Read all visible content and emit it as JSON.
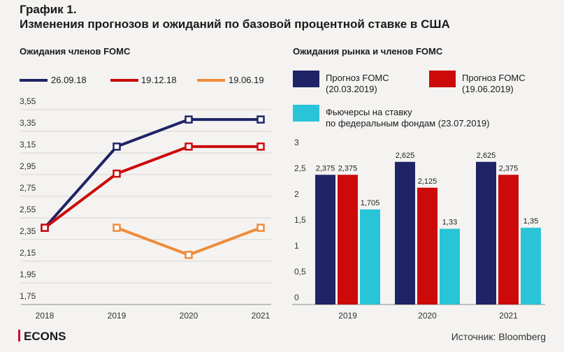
{
  "header": {
    "line1": "График 1.",
    "line2": "Изменения прогнозов и ожиданий по базовой процентной ставке в США"
  },
  "footer": {
    "brand": "ECONS",
    "source": "Источник: Bloomberg"
  },
  "colors": {
    "navy": "#1f2466",
    "red": "#cc0a0a",
    "orange": "#ee8c3c",
    "cyan": "#29c4d8"
  },
  "chart_data": [
    {
      "type": "line",
      "title": "Ожидания членов FOMC",
      "categories": [
        "2018",
        "2019",
        "2020",
        "2021"
      ],
      "y_ticks": [
        "3,55",
        "3,35",
        "3,15",
        "2,95",
        "2,75",
        "2,55",
        "2,35",
        "2,15",
        "1,95",
        "1,75"
      ],
      "ylim": [
        1.75,
        3.55
      ],
      "series": [
        {
          "name": "26.09.18",
          "values": [
            2.375,
            3.125,
            3.375,
            3.375
          ]
        },
        {
          "name": "19.12.18",
          "values": [
            2.375,
            2.875,
            3.125,
            3.125
          ]
        },
        {
          "name": "19.06.19",
          "values": [
            null,
            2.375,
            2.125,
            2.375
          ]
        }
      ]
    },
    {
      "type": "bar",
      "title": "Ожидания рынка и членов FOMC",
      "categories": [
        "2019",
        "2020",
        "2021"
      ],
      "y_ticks": [
        "3",
        "2,5",
        "2",
        "1,5",
        "1",
        "0,5",
        "0"
      ],
      "ylim": [
        0,
        3
      ],
      "series": [
        {
          "name": "Прогноз FOMC",
          "name_line2": "(20.03.2019)",
          "values": [
            2.375,
            2.625,
            2.625
          ],
          "labels": [
            "2,375",
            "2,625",
            "2,625"
          ]
        },
        {
          "name": "Прогноз FOMC",
          "name_line2": "(19.06.2019)",
          "values": [
            2.375,
            2.125,
            2.375
          ],
          "labels": [
            "2,375",
            "2,125",
            "2,375"
          ]
        },
        {
          "name": "Фьючерсы на ставку",
          "name_line2": "по федеральным фондам (23.07.2019)",
          "values": [
            1.705,
            1.33,
            1.35
          ],
          "labels": [
            "1,705",
            "1,33",
            "1,35"
          ]
        }
      ]
    }
  ]
}
